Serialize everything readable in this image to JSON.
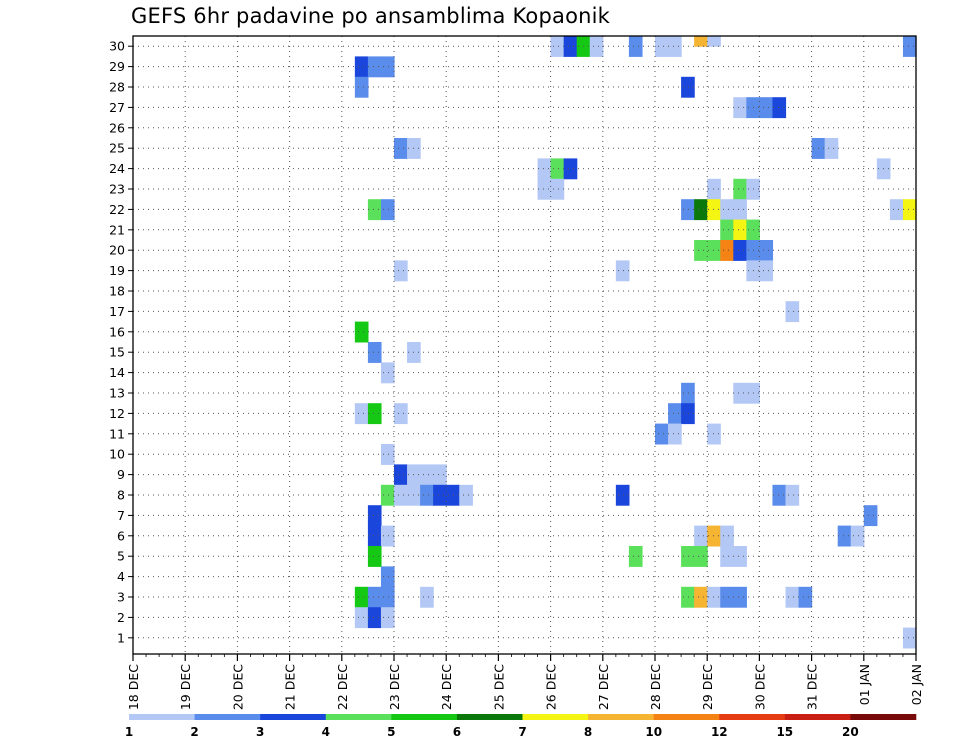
{
  "chart_data": {
    "type": "heatmap",
    "title": "GEFS 6hr padavine po ansamblima Kopaonik",
    "xlabel": "",
    "ylabel": "",
    "x_tick_labels": [
      "18 DEC",
      "19 DEC",
      "20 DEC",
      "21 DEC",
      "22 DEC",
      "23 DEC",
      "24 DEC",
      "25 DEC",
      "26 DEC",
      "27 DEC",
      "28 DEC",
      "29 DEC",
      "30 DEC",
      "31 DEC",
      "01 JAN",
      "02 JAN"
    ],
    "y_tick_labels": [
      "1",
      "2",
      "3",
      "4",
      "5",
      "6",
      "7",
      "8",
      "9",
      "10",
      "11",
      "12",
      "13",
      "14",
      "15",
      "16",
      "17",
      "18",
      "19",
      "20",
      "21",
      "22",
      "23",
      "24",
      "25",
      "26",
      "27",
      "28",
      "29",
      "30"
    ],
    "xlim_days": [
      0,
      15
    ],
    "steps_per_day": 4,
    "ylim_members": [
      0,
      30
    ],
    "grid": "dotted",
    "legend": {
      "position": "bottom",
      "labels": [
        "1",
        "2",
        "3",
        "4",
        "5",
        "6",
        "7",
        "8",
        "10",
        "12",
        "15",
        "20"
      ],
      "colors": [
        "#b4c8f5",
        "#5a8ceb",
        "#1a46dc",
        "#5ae05a",
        "#14c814",
        "#0a780a",
        "#f5f514",
        "#f5b432",
        "#f58214",
        "#e63c14",
        "#c81e14",
        "#780a0a"
      ]
    },
    "cells": [
      [
        17,
        28,
        2
      ],
      [
        18,
        28,
        1
      ],
      [
        19,
        28,
        1
      ],
      [
        17,
        27,
        1
      ],
      [
        43,
        30,
        7
      ],
      [
        44,
        30,
        0
      ],
      [
        32,
        29,
        0
      ],
      [
        33,
        29,
        2
      ],
      [
        34,
        29,
        4
      ],
      [
        35,
        29,
        0
      ],
      [
        38,
        29,
        1
      ],
      [
        40,
        29,
        0
      ],
      [
        41,
        29,
        0
      ],
      [
        59,
        29,
        1
      ],
      [
        42,
        27,
        2
      ],
      [
        46,
        26,
        0
      ],
      [
        47,
        26,
        1
      ],
      [
        48,
        26,
        1
      ],
      [
        49,
        26,
        2
      ],
      [
        20,
        24,
        1
      ],
      [
        21,
        24,
        0
      ],
      [
        52,
        24,
        1
      ],
      [
        53,
        24,
        0
      ],
      [
        31,
        23,
        0
      ],
      [
        32,
        23,
        3
      ],
      [
        33,
        23,
        2
      ],
      [
        57,
        23,
        0
      ],
      [
        31,
        22,
        0
      ],
      [
        32,
        22,
        0
      ],
      [
        44,
        22,
        0
      ],
      [
        46,
        22,
        3
      ],
      [
        47,
        22,
        0
      ],
      [
        18,
        21,
        3
      ],
      [
        19,
        21,
        1
      ],
      [
        42,
        21,
        1
      ],
      [
        43,
        21,
        5
      ],
      [
        44,
        21,
        6
      ],
      [
        45,
        21,
        0
      ],
      [
        46,
        21,
        0
      ],
      [
        58,
        21,
        0
      ],
      [
        59,
        21,
        6
      ],
      [
        45,
        20,
        3
      ],
      [
        46,
        20,
        6
      ],
      [
        47,
        20,
        3
      ],
      [
        43,
        19,
        3
      ],
      [
        44,
        19,
        3
      ],
      [
        45,
        19,
        8
      ],
      [
        46,
        19,
        2
      ],
      [
        47,
        19,
        1
      ],
      [
        48,
        19,
        1
      ],
      [
        20,
        18,
        0
      ],
      [
        37,
        18,
        0
      ],
      [
        47,
        18,
        0
      ],
      [
        48,
        18,
        0
      ],
      [
        50,
        16,
        0
      ],
      [
        17,
        15,
        4
      ],
      [
        18,
        14,
        1
      ],
      [
        21,
        14,
        0
      ],
      [
        19,
        13,
        0
      ],
      [
        42,
        12,
        1
      ],
      [
        46,
        12,
        0
      ],
      [
        47,
        12,
        0
      ],
      [
        17,
        11,
        0
      ],
      [
        18,
        11,
        4
      ],
      [
        20,
        11,
        0
      ],
      [
        41,
        11,
        1
      ],
      [
        42,
        11,
        2
      ],
      [
        40,
        10,
        1
      ],
      [
        41,
        10,
        0
      ],
      [
        44,
        10,
        0
      ],
      [
        19,
        9,
        0
      ],
      [
        20,
        8,
        2
      ],
      [
        21,
        8,
        0
      ],
      [
        22,
        8,
        0
      ],
      [
        23,
        8,
        0
      ],
      [
        19,
        7,
        3
      ],
      [
        20,
        7,
        0
      ],
      [
        21,
        7,
        0
      ],
      [
        22,
        7,
        1
      ],
      [
        23,
        7,
        2
      ],
      [
        24,
        7,
        2
      ],
      [
        25,
        7,
        0
      ],
      [
        37,
        7,
        2
      ],
      [
        49,
        7,
        1
      ],
      [
        50,
        7,
        0
      ],
      [
        18,
        6,
        2
      ],
      [
        56,
        6,
        1
      ],
      [
        18,
        5,
        2
      ],
      [
        19,
        5,
        0
      ],
      [
        43,
        5,
        0
      ],
      [
        44,
        5,
        7
      ],
      [
        45,
        5,
        0
      ],
      [
        54,
        5,
        1
      ],
      [
        55,
        5,
        0
      ],
      [
        18,
        4,
        4
      ],
      [
        38,
        4,
        3
      ],
      [
        42,
        4,
        3
      ],
      [
        43,
        4,
        3
      ],
      [
        45,
        4,
        0
      ],
      [
        46,
        4,
        0
      ],
      [
        19,
        3,
        1
      ],
      [
        17,
        2,
        4
      ],
      [
        18,
        2,
        1
      ],
      [
        19,
        2,
        1
      ],
      [
        22,
        2,
        0
      ],
      [
        42,
        2,
        3
      ],
      [
        43,
        2,
        7
      ],
      [
        44,
        2,
        0
      ],
      [
        45,
        2,
        1
      ],
      [
        46,
        2,
        1
      ],
      [
        50,
        2,
        0
      ],
      [
        51,
        2,
        1
      ],
      [
        17,
        1,
        0
      ],
      [
        18,
        1,
        2
      ],
      [
        19,
        1,
        0
      ],
      [
        59,
        0,
        0
      ]
    ]
  }
}
